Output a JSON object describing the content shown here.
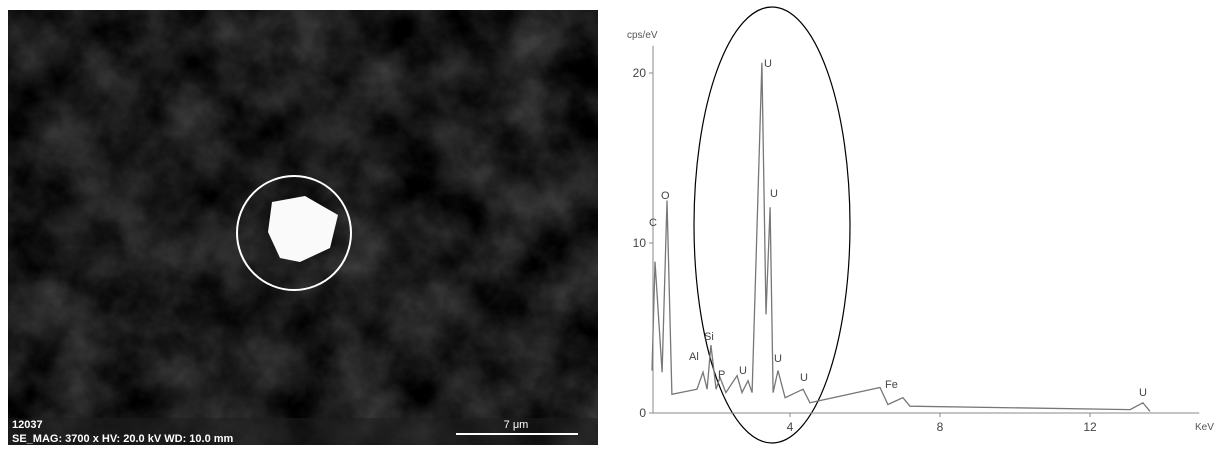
{
  "image": {
    "id": "12037",
    "info": "SE_MAG: 3700 x  HV: 20.0 kV  WD: 10.0 mm",
    "scale_bar": "7 μm"
  },
  "chart_data": {
    "type": "line",
    "ylabel": "cps/eV",
    "xlabel": "KeV",
    "color": "#777777",
    "x": [
      0.32,
      0.4,
      0.59,
      0.72,
      0.85,
      1.52,
      1.68,
      1.79,
      1.89,
      2.03,
      2.13,
      2.29,
      2.59,
      2.72,
      2.88,
      2.99,
      3.25,
      3.36,
      3.47,
      3.55,
      3.68,
      3.87,
      4.35,
      4.53,
      6.4,
      6.61,
      7.01,
      7.2,
      13.07,
      13.41,
      13.6
    ],
    "values": [
      2.5,
      8.9,
      2.4,
      12.5,
      1.1,
      1.4,
      2.4,
      1.4,
      4.0,
      1.4,
      2.1,
      1.2,
      2.2,
      1.2,
      1.9,
      1.2,
      20.6,
      5.8,
      12.1,
      1.2,
      2.5,
      0.9,
      1.4,
      0.6,
      1.5,
      0.5,
      0.9,
      0.4,
      0.2,
      0.6,
      0.1
    ],
    "peak_labels": [
      "C",
      "O",
      "Al",
      "Si",
      "P",
      "U",
      "U",
      "U",
      "U",
      "U",
      "Fe",
      "U"
    ],
    "xlim": [
      0,
      14.7
    ],
    "ylim": [
      0,
      21.6
    ],
    "xticks": [
      4,
      8,
      12
    ],
    "yticks": [
      0,
      10,
      20
    ]
  }
}
